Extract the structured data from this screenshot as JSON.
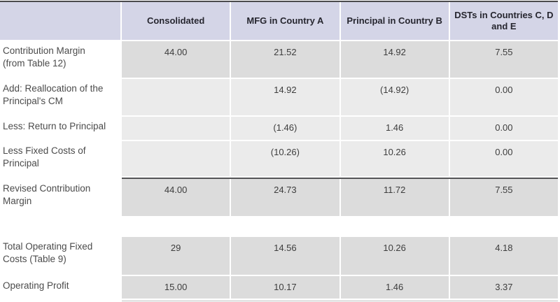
{
  "table": {
    "columns": [
      "",
      "Consolidated",
      "MFG in Country A",
      "Principal in Country B",
      "DSTs in Countries C, D and E"
    ],
    "rows": [
      {
        "label": "Contribution Margin (from Table 12)",
        "values": [
          "44.00",
          "21.52",
          "14.92",
          "7.55"
        ],
        "shade": "dark"
      },
      {
        "label": "Add: Reallocation of the Principal's CM",
        "values": [
          "",
          "14.92",
          "(14.92)",
          "0.00"
        ],
        "shade": "light"
      },
      {
        "label": "Less: Return to Principal",
        "values": [
          "",
          "(1.46)",
          "1.46",
          "0.00"
        ],
        "shade": "light"
      },
      {
        "label": "Less Fixed Costs of Principal",
        "values": [
          "",
          "(10.26)",
          "10.26",
          "0.00"
        ],
        "shade": "light"
      },
      {
        "label": "Revised Contribution Margin",
        "values": [
          "44.00",
          "24.73",
          "11.72",
          "7.55"
        ],
        "shade": "dark",
        "rule_above": true
      },
      {
        "label": "Total Operating Fixed Costs (Table 9)",
        "values": [
          "29",
          "14.56",
          "10.26",
          "4.18"
        ],
        "shade": "dark",
        "gap_above": true
      },
      {
        "label": "Operating Profit",
        "values": [
          "15.00",
          "10.17",
          "1.46",
          "3.37"
        ],
        "shade": "dark"
      }
    ]
  },
  "colors": {
    "header_bg": "#d4d5e7",
    "row_dark": "#dcdcdc",
    "row_light": "#ebebeb",
    "top_rule": "#4a4a4c",
    "subtotal_rule": "#545456",
    "bottom_rule": "#bfbfbf",
    "header_text": "#26262f",
    "label_text": "#4b4b4b",
    "value_text": "#3d3d3d"
  }
}
